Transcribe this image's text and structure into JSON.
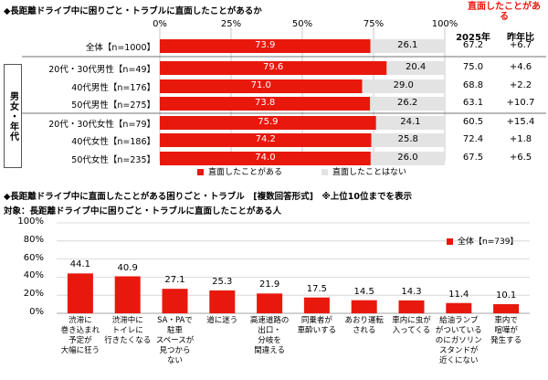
{
  "chart_data": [
    {
      "type": "bar",
      "orientation": "horizontal-stacked",
      "title": "◆長距離ドライブ中に困りごと・トラブルに直面したことがあるか",
      "xlim": [
        0,
        100
      ],
      "x_ticks": [
        "0%",
        "25%",
        "50%",
        "75%",
        "100%"
      ],
      "categories": [
        "全体【n=1000】",
        "20代・30代男性【n=49】",
        "40代男性【n=176】",
        "50代男性【n=275】",
        "20代・30代女性【n=79】",
        "40代女性【n=186】",
        "50代女性【n=235】"
      ],
      "group_label": "男女・年代",
      "series": [
        {
          "name": "直面したことがある",
          "color": "#e8180d",
          "values": [
            73.9,
            79.6,
            71.0,
            73.8,
            75.9,
            74.2,
            74.0
          ]
        },
        {
          "name": "直面したことはない",
          "color": "#e3e3e3",
          "values": [
            26.1,
            20.4,
            29.0,
            26.2,
            24.1,
            25.8,
            26.0
          ]
        }
      ],
      "side_table": {
        "header_main": "直面したことがある",
        "col_headers": [
          "2025年",
          "昨年比"
        ],
        "values_2025": [
          "67.2",
          "75.0",
          "68.8",
          "63.1",
          "60.5",
          "72.4",
          "67.5"
        ],
        "yoy": [
          "+6.7",
          "+4.6",
          "+2.2",
          "+10.7",
          "+15.4",
          "+1.8",
          "+6.5"
        ]
      },
      "legend": [
        "直面したことがある",
        "直面したことはない"
      ],
      "grid": true
    },
    {
      "type": "bar",
      "title": "◆長距離ドライブ中に直面したことがある困りごと・トラブル　[複数回答形式]　※上位10位までを表示",
      "subtitle": "対象：長距離ドライブ中に困りごと・トラブルに直面したことがある人",
      "ylim": [
        0,
        100
      ],
      "y_ticks": [
        "0%",
        "20%",
        "40%",
        "60%",
        "80%",
        "100%"
      ],
      "categories": [
        "渋滞に\n巻き込まれ\n予定が\n大幅に狂う",
        "渋滞中に\nトイレに\n行きたくなる",
        "SA・PAで\n駐車\nスペースが\n見つから\nない",
        "道に迷う",
        "高速道路の\n出口・\n分岐を\n間違える",
        "同乗者が\n車酔いする",
        "あおり運転\nされる",
        "車内に虫が\n入ってくる",
        "給油ランプ\nがついている\nのにガソリン\nスタンドが\n近くにない",
        "車内で\n喧嘩が\n発生する"
      ],
      "series": [
        {
          "name": "全体【n=739】",
          "color": "#e8180d",
          "values": [
            44.1,
            40.9,
            27.1,
            25.3,
            21.9,
            17.5,
            14.5,
            14.3,
            11.4,
            10.1
          ]
        }
      ],
      "value_labels": [
        "44.1",
        "40.9",
        "27.1",
        "25.3",
        "21.9",
        "17.5",
        "14.5",
        "14.3",
        "11.4",
        "10.1"
      ],
      "legend": "top-right",
      "grid": true
    }
  ]
}
